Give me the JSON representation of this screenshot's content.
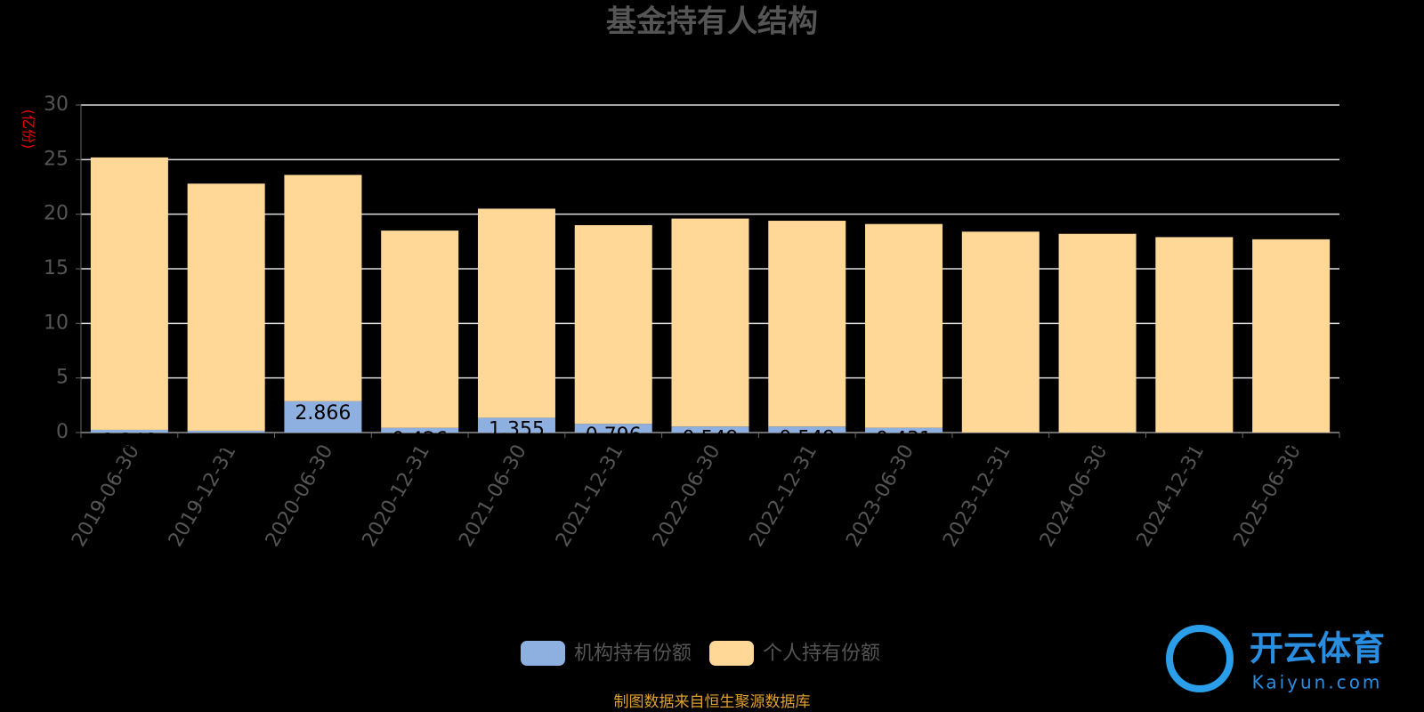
{
  "chart_data": {
    "type": "stacked-bar",
    "title": "基金持有人结构",
    "y_label": "(亿份)",
    "categories": [
      "2019-06-30",
      "2019-12-31",
      "2020-06-30",
      "2020-12-31",
      "2021-06-30",
      "2021-12-31",
      "2022-06-30",
      "2022-12-31",
      "2023-06-30",
      "2023-12-31",
      "2024-06-30",
      "2024-12-31",
      "2025-06-30"
    ],
    "series": [
      {
        "name": "机构持有份额",
        "color": "#8eb0e0",
        "values": [
          0.249,
          0.168,
          2.866,
          0.426,
          1.355,
          0.796,
          0.549,
          0.549,
          0.431,
          0.01,
          0.01,
          0.01,
          0.01
        ]
      },
      {
        "name": "个人持有份额",
        "color": "#ffd898",
        "values": [
          24.95,
          22.63,
          20.73,
          18.07,
          19.15,
          18.2,
          19.05,
          18.85,
          18.67,
          18.39,
          18.19,
          17.89,
          17.69
        ]
      }
    ],
    "ylim": [
      0,
      30
    ],
    "yticks": [
      0,
      5,
      10,
      15,
      20,
      25,
      30
    ],
    "grid": true,
    "source": "制图数据来自恒生聚源数据库",
    "watermark": {
      "brand": "开云体育",
      "site": "Kaiyun.com"
    }
  }
}
